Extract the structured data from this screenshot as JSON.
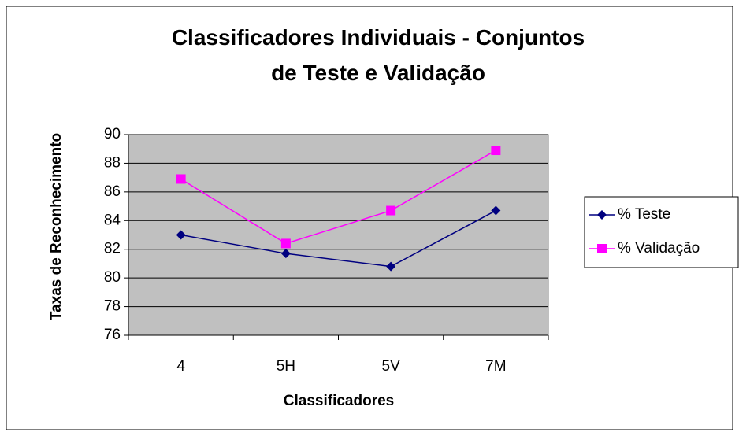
{
  "chart_data": {
    "type": "line",
    "title": "Classificadores Individuais - Conjuntos de Teste e Validação",
    "x_label": "Classificadores",
    "y_label": "Taxas de Reconhecimento",
    "categories": [
      "4",
      "5H",
      "5V",
      "7M"
    ],
    "series": [
      {
        "name": "% Teste",
        "color": "#000080",
        "marker": "diamond",
        "values": [
          83.0,
          81.7,
          80.8,
          84.7
        ]
      },
      {
        "name": "% Validação",
        "color": "#ff00ff",
        "marker": "square",
        "values": [
          86.9,
          82.4,
          84.7,
          88.9
        ]
      }
    ],
    "ylim": [
      76,
      90
    ],
    "yticks": [
      76,
      78,
      80,
      82,
      84,
      86,
      88,
      90
    ],
    "grid": true,
    "legend": "right",
    "plot_background": "#c0c0c0"
  }
}
